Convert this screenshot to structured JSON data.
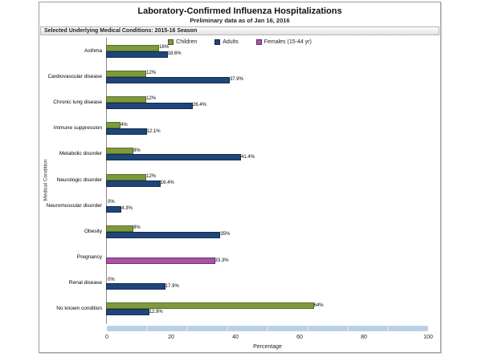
{
  "header": {
    "title": "Laboratory-Confirmed Influenza Hospitalizations",
    "subtitle": "Preliminary data as of Jan 16, 2016",
    "strip": "Selected Underlying Medical Conditions: 2015-16 Season"
  },
  "colors": {
    "children_fill": "#7E9A3C",
    "children_border": "#55702A",
    "adults_fill": "#1F4679",
    "adults_border": "#122B4D",
    "females_fill": "#A855A8",
    "females_border": "#6B2D6B",
    "scrollbar": "#B9CFE8",
    "axis_line": "#8C8C8C"
  },
  "chart_data": {
    "type": "bar",
    "orientation": "horizontal",
    "title": "Laboratory-Confirmed Influenza Hospitalizations",
    "subtitle": "Preliminary data as of Jan 16, 2016",
    "xlabel": "Percentage",
    "ylabel": "Medical Condition",
    "xlim": [
      0,
      100
    ],
    "xticks": [
      0,
      20,
      40,
      60,
      80,
      100
    ],
    "grid": false,
    "legend_position": "top",
    "categories": [
      "Asthma",
      "Cardiovascular disease",
      "Chronic lung disease",
      "Immune suppression",
      "Metabolic disorder",
      "Neurologic disorder",
      "Neuromuscular disorder",
      "Obesity",
      "Pregnancy",
      "Renal disease",
      "No known condition"
    ],
    "series": [
      {
        "name": "Children",
        "color": "#7E9A3C",
        "border": "#55702A",
        "values": [
          16,
          12,
          12,
          4,
          8,
          12,
          0,
          8,
          null,
          0,
          64
        ],
        "labels": [
          "16%",
          "12%",
          "12%",
          "4%",
          "8%",
          "12%",
          "0%",
          "8%",
          "",
          "0%",
          "64%"
        ]
      },
      {
        "name": "Adults",
        "color": "#1F4679",
        "border": "#122B4D",
        "values": [
          18.6,
          37.9,
          26.4,
          12.1,
          41.4,
          16.4,
          4.3,
          35,
          null,
          17.9,
          12.9
        ],
        "labels": [
          "18.6%",
          "37.9%",
          "26.4%",
          "12.1%",
          "41.4%",
          "16.4%",
          "4.3%",
          "35%",
          "",
          "17.9%",
          "12.9%"
        ]
      },
      {
        "name": "Females (15-44 yr)",
        "color": "#A855A8",
        "border": "#6B2D6B",
        "values": [
          null,
          null,
          null,
          null,
          null,
          null,
          null,
          null,
          33.3,
          null,
          null
        ],
        "labels": [
          "",
          "",
          "",
          "",
          "",
          "",
          "",
          "",
          "33.3%",
          "",
          ""
        ]
      }
    ]
  }
}
